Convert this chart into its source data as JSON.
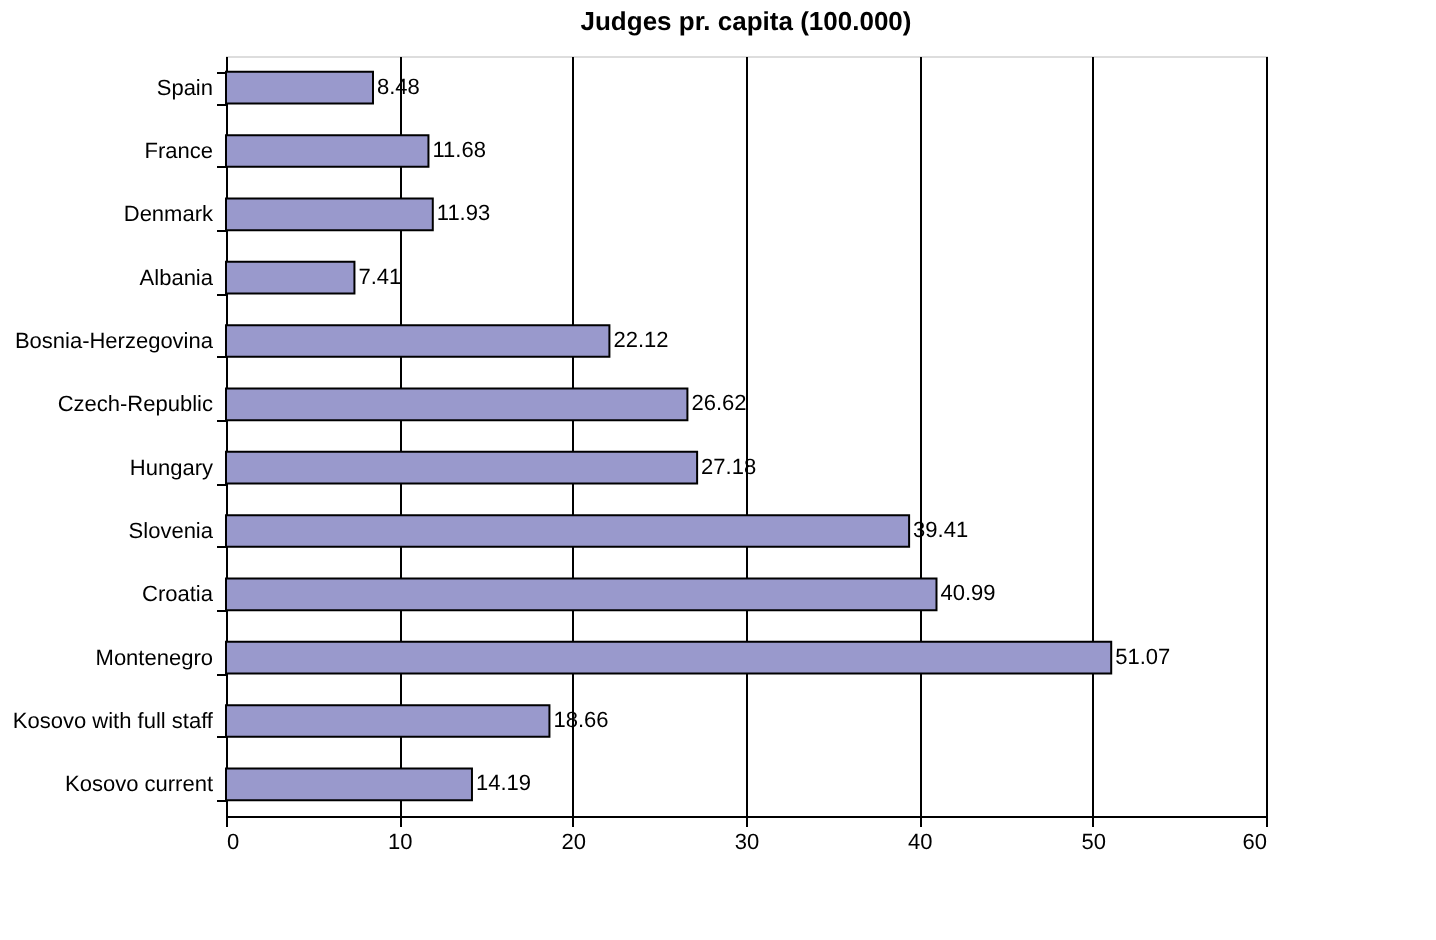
{
  "chart_data": {
    "type": "bar",
    "orientation": "horizontal",
    "title": "Judges pr. capita (100.000)",
    "categories": [
      "Spain",
      "France",
      "Denmark",
      "Albania",
      "Bosnia-Herzegovina",
      "Czech-Republic",
      "Hungary",
      "Slovenia",
      "Croatia",
      "Montenegro",
      "Kosovo with full staff",
      "Kosovo current"
    ],
    "values": [
      8.48,
      11.68,
      11.93,
      7.41,
      22.12,
      26.62,
      27.18,
      39.41,
      40.99,
      51.07,
      18.66,
      14.19
    ],
    "color": "#9999cc",
    "xlim": [
      0,
      60
    ],
    "xticks": [
      0,
      10,
      20,
      30,
      40,
      50,
      60
    ],
    "grid": "x",
    "data_labels": true
  }
}
